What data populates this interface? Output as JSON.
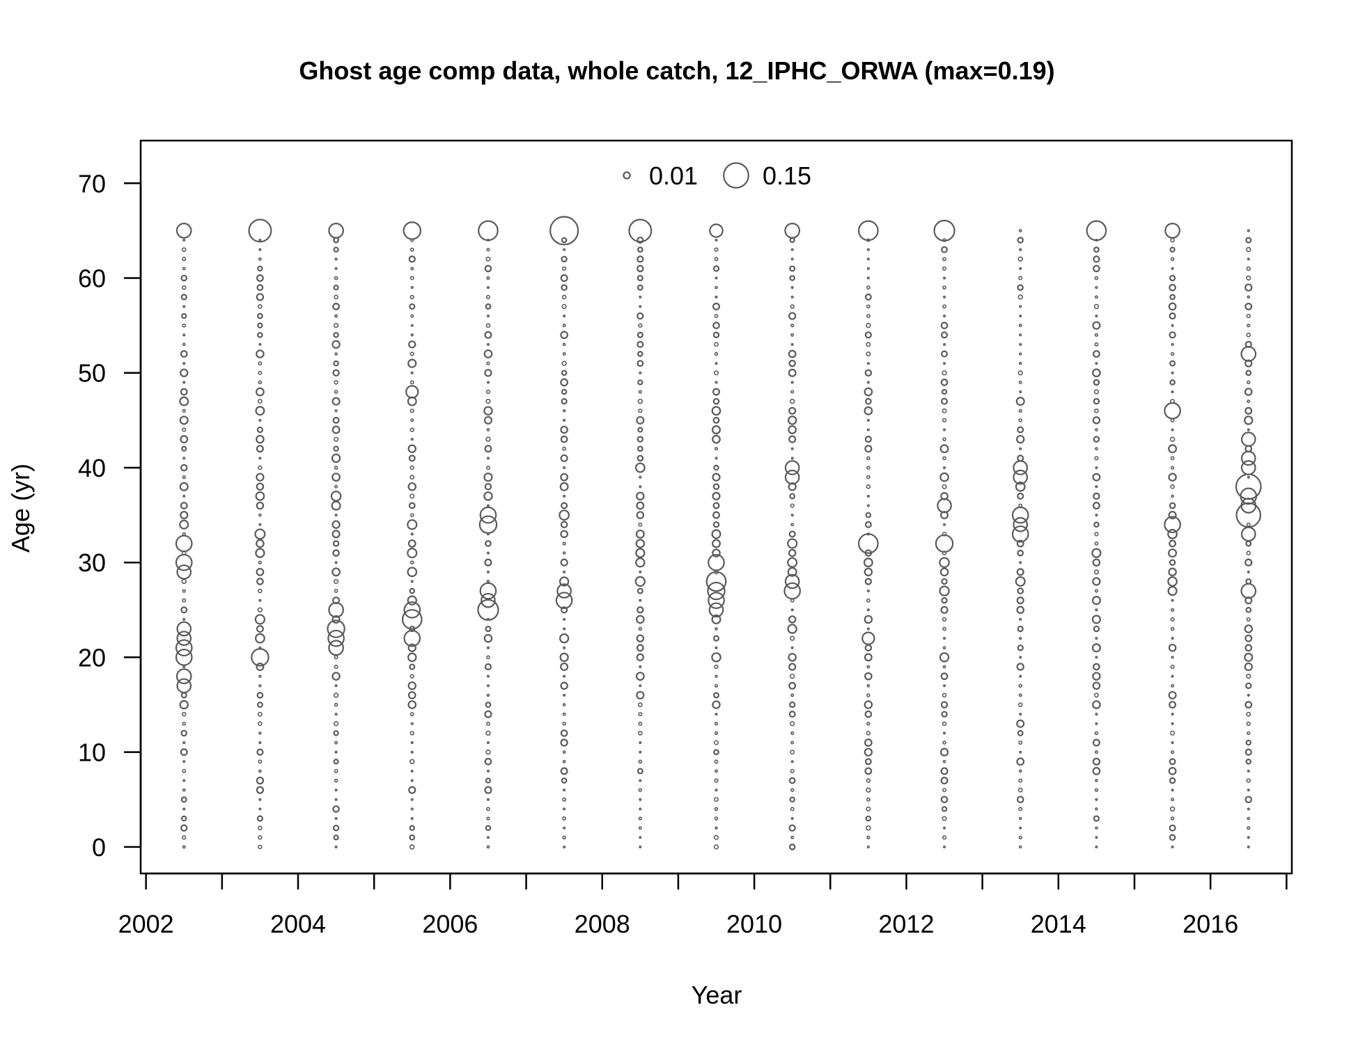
{
  "chart_data": {
    "type": "bubble",
    "title": "Ghost age comp data, whole catch, 12_IPHC_ORWA (max=0.19)",
    "xlabel": "Year",
    "ylabel": "Age (yr)",
    "xlim": [
      2001.93,
      2017.07
    ],
    "ylim": [
      -2.8,
      74.5
    ],
    "x_ticks": [
      2002,
      2003,
      2004,
      2005,
      2006,
      2007,
      2008,
      2009,
      2010,
      2011,
      2012,
      2013,
      2014,
      2015,
      2016,
      2017
    ],
    "x_tick_labels": [
      "2002",
      "",
      "2004",
      "",
      "2006",
      "",
      "2008",
      "",
      "2010",
      "",
      "2012",
      "",
      "2014",
      "",
      "2016",
      ""
    ],
    "y_ticks": [
      0,
      10,
      20,
      30,
      40,
      50,
      60,
      70
    ],
    "y_tick_labels": [
      "0",
      "10",
      "20",
      "30",
      "40",
      "50",
      "60",
      "70"
    ],
    "max_proportion": 0.19,
    "legend": {
      "position": "top-center",
      "entries": [
        {
          "label": "0.01",
          "value": 0.01
        },
        {
          "label": "0.15",
          "value": 0.15
        }
      ]
    },
    "colors": {
      "symbol": "#5a5a5a",
      "axis": "#000000"
    },
    "ages": {
      "min": 0,
      "max": 65
    },
    "series": [
      {
        "year": 2002.5,
        "emphasized": {
          "65": 0.05,
          "32": 0.06,
          "30": 0.06,
          "29": 0.045,
          "23": 0.045,
          "22": 0.045,
          "21": 0.06,
          "20": 0.06,
          "18": 0.05,
          "17": 0.045
        }
      },
      {
        "year": 2003.5,
        "emphasized": {
          "65": 0.12,
          "20": 0.07
        }
      },
      {
        "year": 2004.5,
        "emphasized": {
          "65": 0.05,
          "25": 0.05,
          "23": 0.07,
          "22": 0.06,
          "21": 0.05
        }
      },
      {
        "year": 2005.5,
        "emphasized": {
          "65": 0.07,
          "48": 0.035,
          "25": 0.06,
          "24": 0.09,
          "22": 0.06
        }
      },
      {
        "year": 2006.5,
        "emphasized": {
          "65": 0.09,
          "35": 0.06,
          "34": 0.07,
          "27": 0.06,
          "26": 0.045,
          "25": 0.1
        }
      },
      {
        "year": 2007.5,
        "emphasized": {
          "65": 0.19,
          "27": 0.045,
          "26": 0.06
        }
      },
      {
        "year": 2008.5,
        "emphasized": {
          "65": 0.12
        }
      },
      {
        "year": 2009.5,
        "emphasized": {
          "65": 0.04,
          "30": 0.06,
          "28": 0.09,
          "27": 0.07,
          "26": 0.06,
          "25": 0.045
        }
      },
      {
        "year": 2010.5,
        "emphasized": {
          "65": 0.05,
          "40": 0.045,
          "39": 0.045,
          "28": 0.045,
          "27": 0.06
        }
      },
      {
        "year": 2011.5,
        "emphasized": {
          "65": 0.09,
          "32": 0.09,
          "22": 0.035
        }
      },
      {
        "year": 2012.5,
        "emphasized": {
          "65": 0.1,
          "36": 0.045,
          "32": 0.07
        }
      },
      {
        "year": 2013.5,
        "emphasized": {
          "40": 0.045,
          "39": 0.045,
          "35": 0.06,
          "34": 0.045,
          "33": 0.06
        }
      },
      {
        "year": 2014.5,
        "emphasized": {
          "65": 0.09
        }
      },
      {
        "year": 2015.5,
        "emphasized": {
          "65": 0.05,
          "46": 0.06,
          "34": 0.06
        }
      },
      {
        "year": 2016.5,
        "emphasized": {
          "52": 0.05,
          "43": 0.045,
          "41": 0.045,
          "40": 0.045,
          "38": 0.15,
          "37": 0.06,
          "36": 0.05,
          "35": 0.14,
          "33": 0.045,
          "27": 0.05
        }
      }
    ]
  }
}
